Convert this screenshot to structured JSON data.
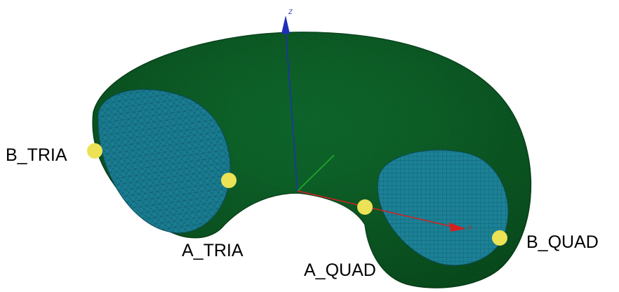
{
  "colors": {
    "torus_outer": "#0b5a22",
    "torus_inner": "#1a7d92",
    "torus_shadow": "#073d18",
    "marker": "#ece255",
    "x_axis": "#d42020",
    "y_axis": "#22b22a",
    "z_axis": "#1f2fb8",
    "label_text": "#000000"
  },
  "axes": {
    "z": {
      "label": "Z",
      "icon": "z-axis-arrow"
    },
    "x": {
      "label": "X",
      "icon": "x-axis-arrow"
    },
    "y": {
      "label": "",
      "icon": "y-axis-line"
    }
  },
  "points": [
    {
      "id": "b-tria",
      "label": "B_TRIA"
    },
    {
      "id": "a-tria",
      "label": "A_TRIA"
    },
    {
      "id": "a-quad",
      "label": "A_QUAD"
    },
    {
      "id": "b-quad",
      "label": "B_QUAD"
    }
  ]
}
